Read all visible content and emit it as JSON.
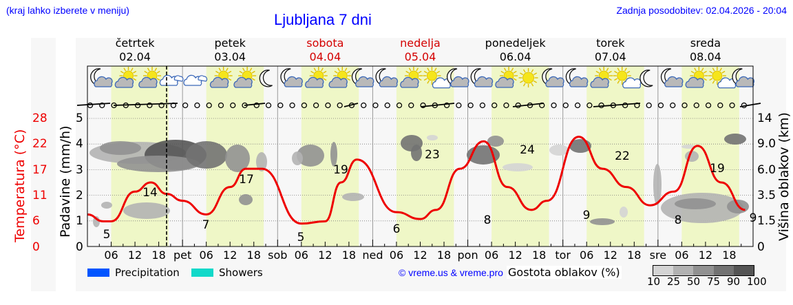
{
  "header": {
    "hint": "(kraj lahko izberete v meniju)",
    "title": "Ljubljana 7 dni",
    "updated": "Zadnja posodobitev: 02.04.2026 - 20:04"
  },
  "days": [
    {
      "name": "četrtek",
      "date": "02.04",
      "weekend": false,
      "short": ""
    },
    {
      "name": "petek",
      "date": "03.04",
      "weekend": false,
      "short": "pet"
    },
    {
      "name": "sobota",
      "date": "04.04",
      "weekend": true,
      "short": "sob"
    },
    {
      "name": "nedelja",
      "date": "05.04",
      "weekend": true,
      "short": "ned"
    },
    {
      "name": "ponedeljek",
      "date": "06.04",
      "weekend": false,
      "short": "pon"
    },
    {
      "name": "torek",
      "date": "07.04",
      "weekend": false,
      "short": "tor"
    },
    {
      "name": "sreda",
      "date": "08.04",
      "weekend": false,
      "short": "sre"
    }
  ],
  "axes": {
    "temp_label": "Temperatura (°C)",
    "temp_ticks": [
      "28",
      "22",
      "17",
      "11",
      "6",
      "0"
    ],
    "precip_label": "Padavine (mm/h)",
    "precip_ticks": [
      "5",
      "4",
      "3",
      "2",
      "1",
      "0"
    ],
    "cloud_label": "Višina oblakov (km)",
    "cloud_ticks": [
      "14",
      "9.0",
      "6.0",
      "3.5",
      "1.5",
      "0"
    ],
    "hour_ticks": [
      "06",
      "12",
      "18"
    ]
  },
  "legend": {
    "precipitation": "Precipitation",
    "precipitation_color": "#0055ff",
    "showers": "Showers",
    "showers_color": "#11d9c9",
    "copyright": "© vreme.us & vreme.pro",
    "cloud_density_label": "Gostota oblakov (%)",
    "cloud_density_ticks": [
      "10",
      "25",
      "50",
      "75",
      "90",
      "100"
    ],
    "cloud_density_colors": [
      "#d4d4d4",
      "#b2b2b2",
      "#919191",
      "#727272",
      "#555555"
    ]
  },
  "colors": {
    "temperature_line": "#ee0000",
    "day_band": "#eff7c7",
    "background": "#f7f7f7",
    "link": "#0000ff"
  },
  "icons_per_day": [
    [
      "moon-cloud-icon",
      "sun-cloud-icon",
      "sun-cloud-icon",
      "cloud-icon"
    ],
    [
      "cloud-icon",
      "sun-cloud-icon",
      "sun-cloud-icon",
      "moon-icon"
    ],
    [
      "moon-cloud-icon",
      "sun-cloud-icon",
      "sun-cloud-icon",
      "moon-cloud-icon"
    ],
    [
      "moon-cloud-icon",
      "sun-cloud-icon",
      "sun-small-cloud-icon",
      "moon-cloud-icon"
    ],
    [
      "moon-cloud-icon",
      "sun-cloud-icon",
      "sun-icon",
      "moon-cloud-icon"
    ],
    [
      "moon-cloud-icon",
      "sun-cloud-icon",
      "sun-small-cloud-icon",
      "moon-icon"
    ],
    [
      "moon-cloud-icon",
      "sun-cloud-icon",
      "sun-small-cloud-icon",
      "moon-cloud-icon"
    ]
  ],
  "chart_data": {
    "type": "line",
    "title": "Ljubljana 7 dni",
    "xlabel": "",
    "ylabel": "Temperatura (°C)",
    "ylim": [
      0,
      28
    ],
    "x_categories": [
      "čet 00",
      "čet 06",
      "čet 12",
      "čet 18",
      "pet 00",
      "pet 06",
      "pet 12",
      "pet 18",
      "sob 00",
      "sob 06",
      "sob 12",
      "sob 18",
      "ned 00",
      "ned 06",
      "ned 12",
      "ned 18",
      "pon 00",
      "pon 06",
      "pon 12",
      "pon 18",
      "tor 00",
      "tor 06",
      "tor 12",
      "tor 18",
      "sre 00",
      "sre 06",
      "sre 12",
      "sre 18"
    ],
    "series": [
      {
        "name": "Temperatura",
        "color": "#ee0000",
        "points_hours": [
          0,
          4,
          6,
          12,
          16,
          20,
          24,
          30,
          36,
          40,
          44,
          54,
          60,
          64,
          68,
          78,
          84,
          88,
          94,
          100,
          106,
          112,
          116,
          124,
          130,
          136,
          142,
          148,
          154,
          160,
          166
        ],
        "points_temp": [
          7,
          5.5,
          5.5,
          12,
          14,
          11.5,
          10,
          7,
          13,
          17,
          17,
          5,
          5.5,
          14,
          19,
          7.5,
          6,
          8,
          17,
          23,
          13,
          8,
          10,
          24,
          17,
          13,
          9,
          12,
          22,
          14,
          8
        ]
      }
    ],
    "labeled_extremes": [
      {
        "day": "četrtek",
        "min": 5,
        "max": 14
      },
      {
        "day": "petek",
        "min": 7,
        "max": 17
      },
      {
        "day": "sobota",
        "min": 5,
        "max": 19
      },
      {
        "day": "nedelja",
        "min": 6,
        "max": 23
      },
      {
        "day": "ponedeljek",
        "min": 8,
        "max": 24
      },
      {
        "day": "torek",
        "min": 9,
        "max": 22
      },
      {
        "day": "sreda",
        "min": 8,
        "max": 19,
        "end": 9
      }
    ],
    "secondary_axes": {
      "precipitation_mm_h": [
        0,
        5
      ],
      "cloud_height_km_ticks": [
        0,
        1.5,
        3.5,
        6.0,
        9.0,
        14
      ]
    },
    "precipitation": "none forecast",
    "now_marker": "02.04 20:04",
    "grid": true,
    "legend_position": "bottom"
  }
}
